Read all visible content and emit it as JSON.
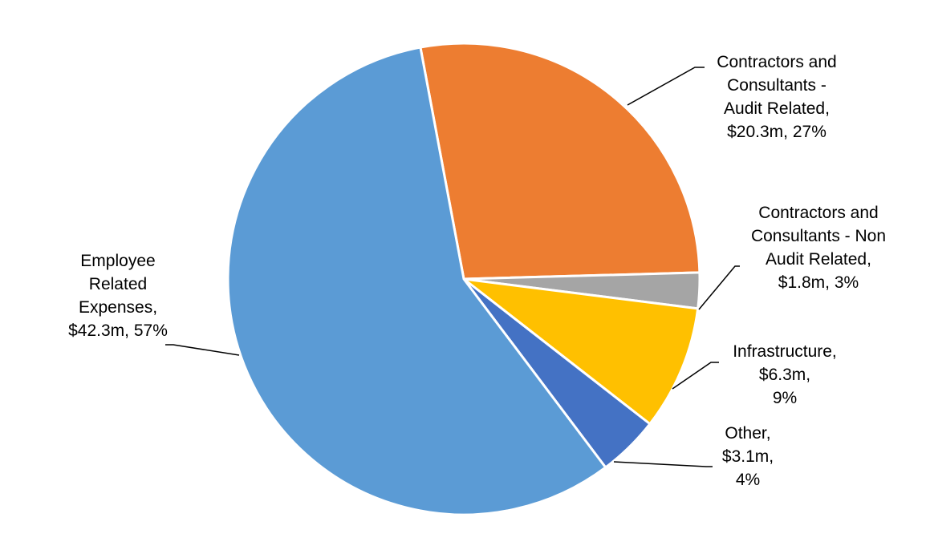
{
  "chart_data": {
    "type": "pie",
    "title": "",
    "legend": "none",
    "slices": [
      {
        "name": "Contractors and Consultants - Audit Related",
        "value": 20.3,
        "percent": 27,
        "color": "#ED7D31",
        "label_lines": [
          "Contractors and",
          "Consultants -",
          "Audit Related,",
          "$20.3m, 27%"
        ]
      },
      {
        "name": "Contractors and Consultants - Non Audit Related",
        "value": 1.8,
        "percent": 3,
        "color": "#A5A5A5",
        "label_lines": [
          "Contractors and",
          "Consultants - Non",
          "Audit Related,",
          "$1.8m, 3%"
        ]
      },
      {
        "name": "Infrastructure",
        "value": 6.3,
        "percent": 9,
        "color": "#FFC000",
        "label_lines": [
          "Infrastructure,",
          "$6.3m,",
          "9%"
        ]
      },
      {
        "name": "Other",
        "value": 3.1,
        "percent": 4,
        "color": "#4472C4",
        "label_lines": [
          "Other,",
          "$3.1m,",
          "4%"
        ]
      },
      {
        "name": "Employee Related Expenses",
        "value": 42.3,
        "percent": 57,
        "color": "#5B9BD5",
        "label_lines": [
          "Employee",
          "Related",
          "Expenses,",
          "$42.3m, 57%"
        ]
      }
    ]
  }
}
